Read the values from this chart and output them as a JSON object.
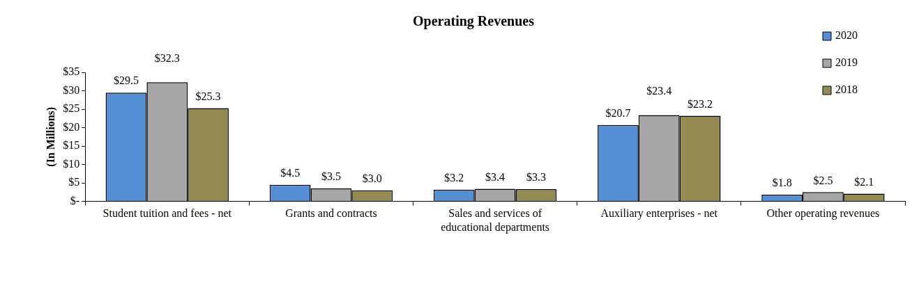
{
  "chart_data": {
    "type": "bar",
    "title": "Operating Revenues",
    "ylabel": "(In Millions)",
    "categories": [
      "Student tuition and fees - net",
      "Grants and contracts",
      "Sales and services of educational departments",
      "Auxiliary enterprises - net",
      "Other operating revenues"
    ],
    "series": [
      {
        "name": "2020",
        "color": "#558ed5",
        "values": [
          29.5,
          4.5,
          3.2,
          20.7,
          1.8
        ],
        "value_labels": [
          "$29.5",
          "$4.5",
          "$3.2",
          "$20.7",
          "$1.8"
        ]
      },
      {
        "name": "2019",
        "color": "#a6a6a6",
        "values": [
          32.3,
          3.5,
          3.4,
          23.4,
          2.5
        ],
        "value_labels": [
          "$32.3",
          "$3.5",
          "$3.4",
          "$23.4",
          "$2.5"
        ]
      },
      {
        "name": "2018",
        "color": "#948a54",
        "values": [
          25.3,
          3.0,
          3.3,
          23.2,
          2.1
        ],
        "value_labels": [
          "$25.3",
          "$3.0",
          "$3.3",
          "$23.2",
          "$2.1"
        ]
      }
    ],
    "ylim": [
      0,
      35
    ],
    "yticks": [
      {
        "value": 0,
        "label": "$-"
      },
      {
        "value": 5,
        "label": "$5"
      },
      {
        "value": 10,
        "label": "$10"
      },
      {
        "value": 15,
        "label": "$15"
      },
      {
        "value": 20,
        "label": "$20"
      },
      {
        "value": 25,
        "label": "$25"
      },
      {
        "value": 30,
        "label": "$30"
      },
      {
        "value": 35,
        "label": "$35"
      }
    ],
    "grid": false,
    "legend": "top right"
  }
}
